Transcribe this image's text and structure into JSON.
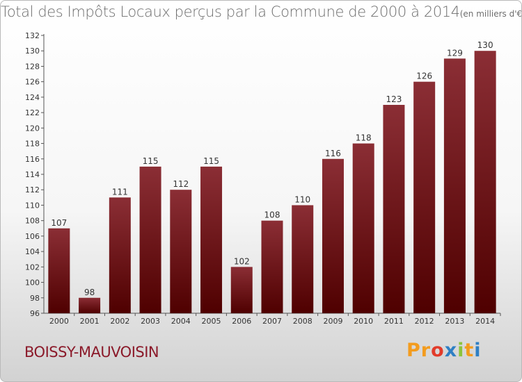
{
  "chart_data": {
    "type": "bar",
    "title": "Total des Impôts Locaux perçus par la Commune de 2000 à 2014",
    "unit_note": "(en milliers d'€)",
    "categories": [
      "2000",
      "2001",
      "2002",
      "2003",
      "2004",
      "2005",
      "2006",
      "2007",
      "2008",
      "2009",
      "2010",
      "2011",
      "2012",
      "2013",
      "2014"
    ],
    "values": [
      107,
      98,
      111,
      115,
      112,
      115,
      102,
      108,
      110,
      116,
      118,
      123,
      126,
      129,
      130
    ],
    "ylim": [
      96,
      132
    ],
    "yticks": [
      96,
      98,
      100,
      102,
      104,
      106,
      108,
      110,
      112,
      114,
      116,
      118,
      120,
      122,
      124,
      126,
      128,
      130,
      132
    ],
    "grid": false,
    "xlabel": "",
    "ylabel": "",
    "bar_color_top": "#8b2e35",
    "bar_color_bottom": "#4f0000"
  },
  "footer": {
    "commune": "BOISSY-MAUVOISIN",
    "logo_letters": [
      "P",
      "r",
      "o",
      "x",
      "i",
      "t",
      "i"
    ],
    "logo_colors": [
      "#f39c1e",
      "#f39c1e",
      "#e23b2a",
      "#2e7fc4",
      "#8cc43c",
      "#f39c1e",
      "#2e7fc4"
    ]
  }
}
